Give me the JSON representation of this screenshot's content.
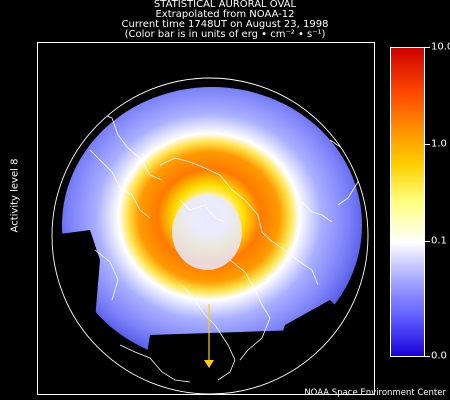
{
  "title": {
    "line1": "STATISTICAL AURORAL OVAL",
    "line2": "Extrapolated from NOAA-12",
    "line3": "Current time 1748UT on August 23, 1998",
    "line4": "(Color bar is in units of erg • cm⁻² • s⁻¹)"
  },
  "activity_label": "Activity level 8",
  "colorbar": {
    "labels": [
      "10.0",
      "1.0",
      "0.1",
      "0.0"
    ],
    "colors": [
      "#d00000",
      "#ff9a00",
      "#ffffff",
      "#1a00d8"
    ]
  },
  "credit": "NOAA Space Environment Center",
  "map": {
    "ocean_color": "#000000",
    "coastline_color": "#ffffff",
    "sun_pointer_color": "#ffd000"
  }
}
